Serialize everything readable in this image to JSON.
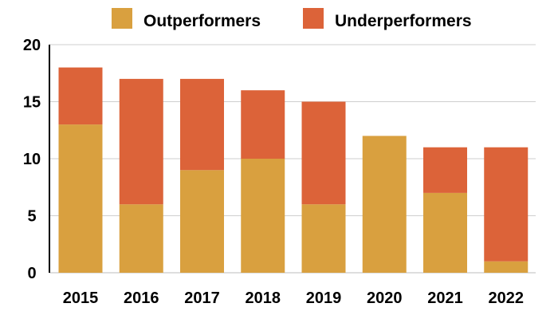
{
  "chart_data": {
    "type": "bar",
    "stacked": true,
    "categories": [
      "2015",
      "2016",
      "2017",
      "2018",
      "2019",
      "2020",
      "2021",
      "2022"
    ],
    "series": [
      {
        "name": "Outperformers",
        "color": "#d9a03f",
        "values": [
          13,
          6,
          9,
          10,
          6,
          12,
          7,
          1
        ]
      },
      {
        "name": "Underperformers",
        "color": "#dc6339",
        "values": [
          5,
          11,
          8,
          6,
          9,
          0,
          4,
          10
        ]
      }
    ],
    "ylim": [
      0,
      20
    ],
    "yticks": [
      0,
      5,
      10,
      15,
      20
    ],
    "grid": true,
    "legend_position": "top"
  }
}
